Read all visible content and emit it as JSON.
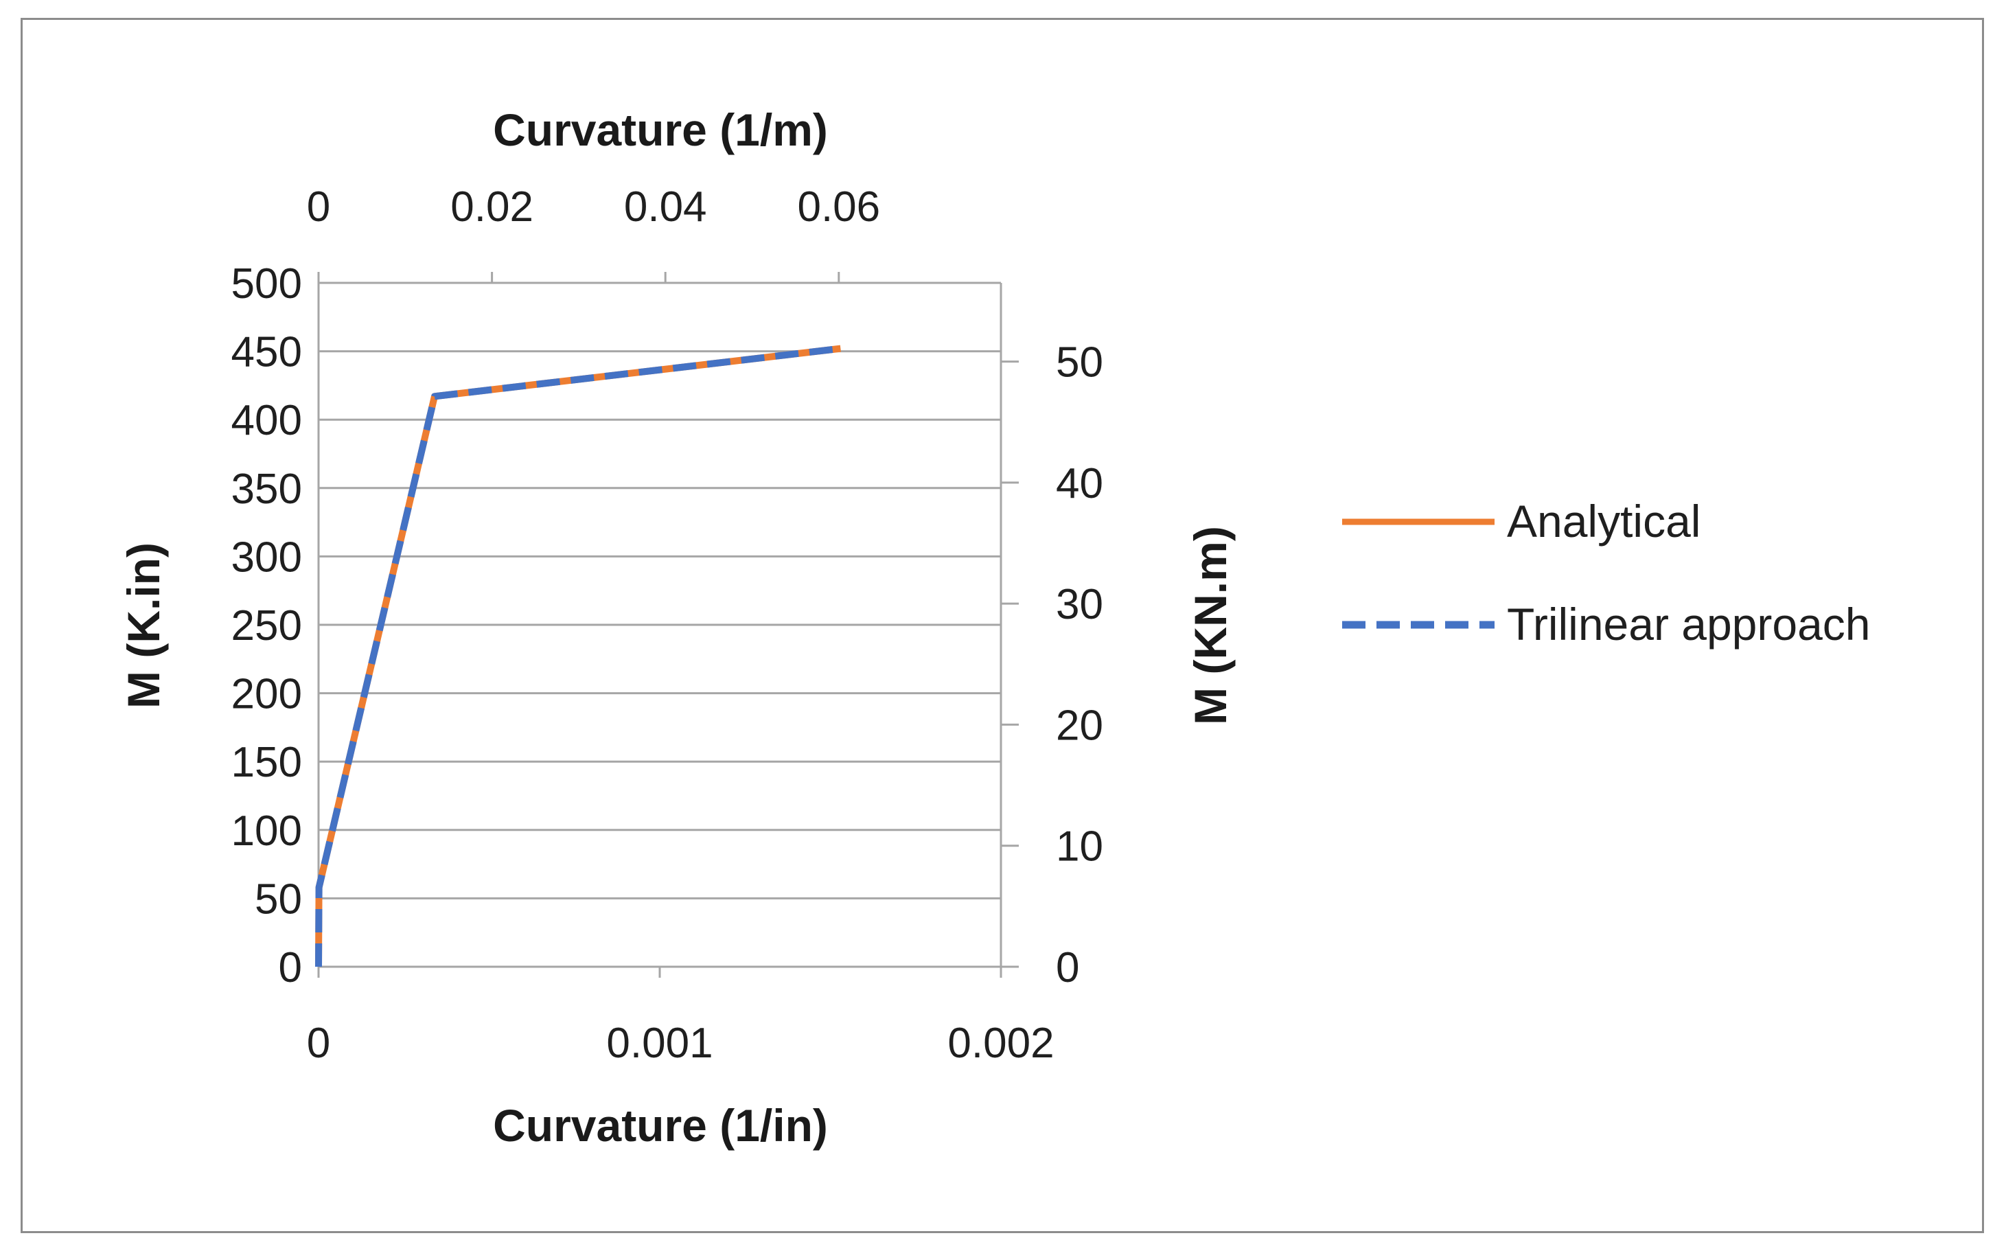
{
  "chart_data": {
    "type": "line",
    "primary_x": {
      "label": "Curvature (1/in)",
      "range": [
        0,
        0.002
      ],
      "ticks": [
        0,
        0.001,
        0.002
      ],
      "tick_labels": [
        "0",
        "0.001",
        "0.002"
      ]
    },
    "secondary_x": {
      "label": "Curvature (1/m)",
      "range": [
        0,
        0.0787
      ],
      "ticks": [
        0,
        0.02,
        0.04,
        0.06
      ],
      "tick_labels": [
        "0",
        "0.02",
        "0.04",
        "0.06"
      ]
    },
    "primary_y": {
      "label": "M (K.in)",
      "range": [
        0,
        500
      ],
      "ticks": [
        0,
        50,
        100,
        150,
        200,
        250,
        300,
        350,
        400,
        450,
        500
      ],
      "tick_labels": [
        "0",
        "50",
        "100",
        "150",
        "200",
        "250",
        "300",
        "350",
        "400",
        "450",
        "500"
      ]
    },
    "secondary_y": {
      "label": "M (KN.m)",
      "range": [
        0,
        56.5
      ],
      "ticks": [
        0,
        10,
        20,
        30,
        40,
        50
      ],
      "tick_labels": [
        "0",
        "10",
        "20",
        "30",
        "40",
        "50"
      ]
    },
    "gridlines": true,
    "legend_position": "right",
    "series": [
      {
        "name": "Analytical",
        "color": "#ed7d31",
        "style": "solid",
        "x": [
          0,
          1.3e-06,
          0.00034,
          0.00153
        ],
        "y": [
          0,
          58,
          417,
          452
        ]
      },
      {
        "name": "Trilinear approach",
        "color": "#4472c4",
        "style": "dashed",
        "x": [
          0,
          1.3e-06,
          0.00034,
          0.00153
        ],
        "y": [
          0,
          58,
          417,
          452
        ]
      }
    ]
  }
}
